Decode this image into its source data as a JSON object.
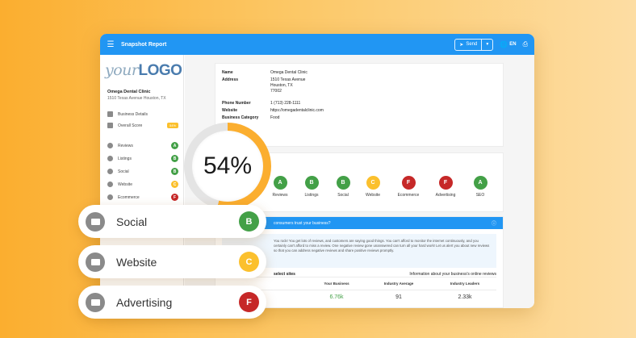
{
  "colors": {
    "accent": "#2196F3",
    "grade_a": "#43A047",
    "grade_b": "#43A047",
    "grade_c": "#FBC02D",
    "grade_f": "#C62828",
    "gauge": "#FBAE2F"
  },
  "header": {
    "menu_icon": "hamburger-icon",
    "title": "Snapshot Report",
    "send_label": "Send",
    "send_dropdown_icon": "chevron-down-icon",
    "language": "EN",
    "globe_icon": "globe-icon",
    "print_icon": "print-icon"
  },
  "sidebar": {
    "logo_part1": "your",
    "logo_part2": "LOGO",
    "business_name": "Omega Dental Clinic",
    "business_address": "1510 Texas Avenue Houston, TX",
    "items": [
      {
        "label": "Business Details",
        "icon": "building-icon"
      },
      {
        "label": "Overall Score",
        "icon": "chart-icon",
        "badge": "54%"
      },
      {
        "label": "Reviews",
        "icon": "star-icon",
        "grade": "A"
      },
      {
        "label": "Listings",
        "icon": "list-icon",
        "grade": "B"
      },
      {
        "label": "Social",
        "icon": "chat-icon",
        "grade": "B"
      },
      {
        "label": "Website",
        "icon": "browser-icon",
        "grade": "C"
      },
      {
        "label": "Ecommerce",
        "icon": "cart-icon",
        "grade": "F"
      }
    ]
  },
  "business_info": {
    "name_label": "Name",
    "name_value": "Omega Dental Clinic",
    "address_label": "Address",
    "address_line1": "1510 Texas Avenue",
    "address_line2": "Houston, TX",
    "address_line3": "77002",
    "phone_label": "Phone Number",
    "phone_value": "1 (713) 228-1111",
    "website_label": "Website",
    "website_value": "https://omegadentalclinic.com",
    "category_label": "Business Category",
    "category_value": "Food"
  },
  "overall_score": {
    "value": "54%",
    "fraction": 0.54
  },
  "grades": [
    {
      "label": "Reviews",
      "grade": "A"
    },
    {
      "label": "Listings",
      "grade": "B"
    },
    {
      "label": "Social",
      "grade": "B"
    },
    {
      "label": "Website",
      "grade": "C"
    },
    {
      "label": "Ecommerce",
      "grade": "F"
    },
    {
      "label": "Advertising",
      "grade": "F"
    },
    {
      "label": "SEO",
      "grade": "A"
    }
  ],
  "trust": {
    "header": "consumers trust your business?",
    "info_icon": "info-icon",
    "body": "You rock! You get lots of reviews, and customers are saying good things. You can't afford to monitor the internet continuously, and you certainly can't afford to miss a review. One negative review gone unanswered can turn all your hard work! Let us alert you about new reviews so that you can address negative reviews and share positive reviews promptly.",
    "sites_label": "select sites",
    "sites_info": "Information about your business's online reviews",
    "columns": [
      "Your Business",
      "Industry Average",
      "Industry Leaders"
    ],
    "values": [
      "6.76k",
      "91",
      "2.33k"
    ]
  },
  "pills": [
    {
      "label": "Social",
      "grade": "B",
      "icon": "chat-icon"
    },
    {
      "label": "Website",
      "grade": "C",
      "icon": "browser-icon"
    },
    {
      "label": "Advertising",
      "grade": "F",
      "icon": "megaphone-icon"
    }
  ]
}
